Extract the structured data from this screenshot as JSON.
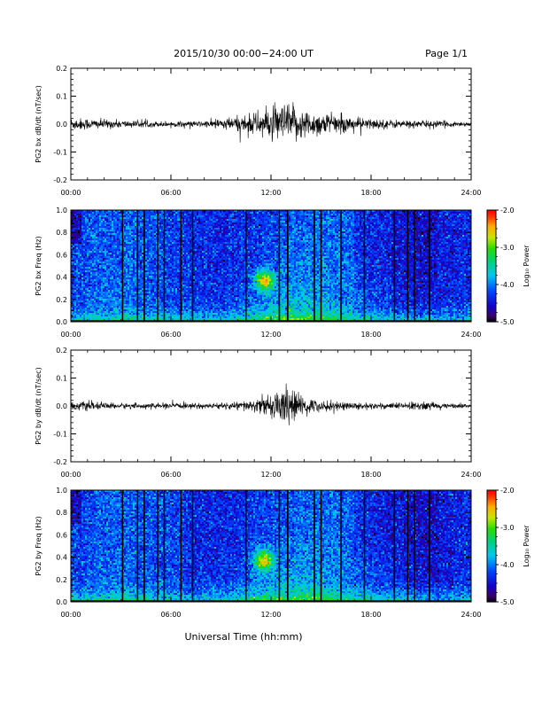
{
  "header": {
    "title": "2015/10/30  00:00−24:00 UT",
    "page": "Page 1/1"
  },
  "x_axis": {
    "label": "Universal Time (hh:mm)",
    "range_hours": [
      0,
      24
    ],
    "tick_labels": [
      "00:00",
      "06:00",
      "12:00",
      "18:00",
      "24:00"
    ]
  },
  "colorbar": {
    "label": "Log₁₀ Power",
    "range": [
      -5.0,
      -2.0
    ],
    "tick_labels": [
      "-2.0",
      "-3.0",
      "-4.0",
      "-5.0"
    ],
    "colormap": "rainbow"
  },
  "chart_data": [
    {
      "type": "line",
      "ylabel": "PG2 bx dB/dt (nT/sec)",
      "ylim": [
        -0.2,
        0.2
      ],
      "y_tick_labels": [
        "0.2",
        "0.1",
        "0.0",
        "-0.1",
        "-0.2"
      ],
      "x_hours": [
        0,
        2,
        4,
        6,
        8,
        10,
        11,
        12,
        13,
        14,
        15,
        16,
        18,
        20,
        21,
        22,
        24
      ],
      "envelope_amplitude": [
        0.025,
        0.018,
        0.012,
        0.01,
        0.012,
        0.03,
        0.045,
        0.06,
        0.08,
        0.055,
        0.045,
        0.035,
        0.02,
        0.015,
        0.015,
        0.013,
        0.008
      ]
    },
    {
      "type": "heatmap",
      "ylabel": "PG2 bx Freq (Hz)",
      "ylim": [
        0.0,
        1.0
      ],
      "y_tick_labels": [
        "1.0",
        "0.8",
        "0.6",
        "0.4",
        "0.2",
        "0.0"
      ],
      "enhancement_center": {
        "x_hours": 11.6,
        "freq_hz": 0.37
      },
      "data_gap_hours": [
        3.1,
        4.0,
        4.4,
        5.2,
        5.6,
        6.6,
        7.3,
        10.5,
        12.5,
        13.0,
        14.6,
        15.0,
        16.2,
        17.6,
        19.4,
        20.2,
        20.6,
        21.5
      ]
    },
    {
      "type": "line",
      "ylabel": "PG2 by dB/dt (nT/sec)",
      "ylim": [
        -0.2,
        0.2
      ],
      "y_tick_labels": [
        "0.2",
        "0.1",
        "0.0",
        "-0.1",
        "-0.2"
      ],
      "x_hours": [
        0,
        2,
        4,
        6,
        8,
        10,
        11,
        12,
        12.5,
        13,
        13.5,
        14,
        15,
        16,
        18,
        20,
        21,
        22,
        24
      ],
      "envelope_amplitude": [
        0.02,
        0.012,
        0.01,
        0.01,
        0.01,
        0.015,
        0.025,
        0.04,
        0.07,
        0.075,
        0.05,
        0.035,
        0.02,
        0.018,
        0.012,
        0.012,
        0.02,
        0.01,
        0.008
      ]
    },
    {
      "type": "heatmap",
      "ylabel": "PG2 by Freq (Hz)",
      "ylim": [
        0.0,
        1.0
      ],
      "y_tick_labels": [
        "1.0",
        "0.8",
        "0.6",
        "0.4",
        "0.2",
        "0.0"
      ],
      "enhancement_center": {
        "x_hours": 11.6,
        "freq_hz": 0.37
      },
      "data_gap_hours": [
        3.1,
        4.0,
        4.4,
        5.2,
        5.6,
        6.6,
        7.3,
        10.5,
        12.5,
        13.0,
        14.6,
        15.0,
        16.2,
        17.6,
        19.4,
        20.2,
        20.6,
        21.5
      ]
    }
  ]
}
